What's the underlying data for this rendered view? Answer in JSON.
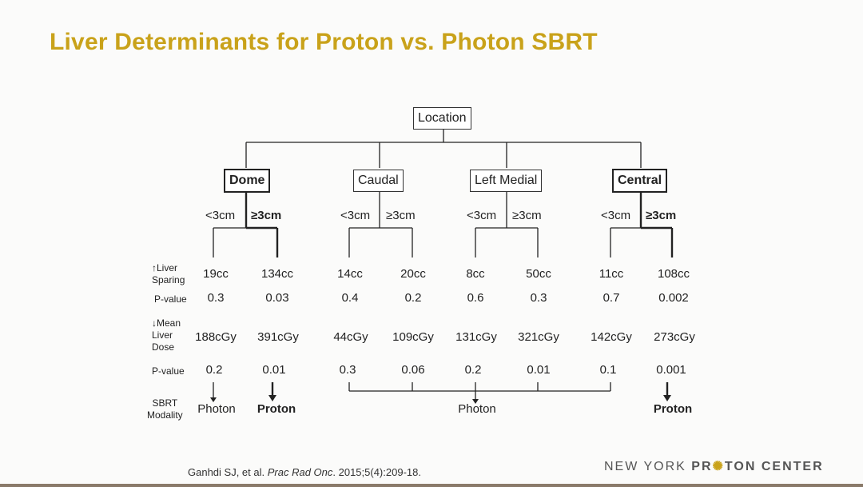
{
  "title": "Liver Determinants for Proton vs. Photon SBRT",
  "tree": {
    "root": "Location",
    "locations": [
      {
        "name": "Dome",
        "bold": true
      },
      {
        "name": "Caudal",
        "bold": false
      },
      {
        "name": "Left Medial",
        "bold": false
      },
      {
        "name": "Central",
        "bold": true
      }
    ],
    "size_labels": [
      "<3cm",
      "≥3cm",
      "<3cm",
      "≥3cm",
      "<3cm",
      "≥3cm",
      "<3cm",
      "≥3cm"
    ]
  },
  "row_headers": {
    "liver_sparing": [
      "↑Liver",
      "Sparing"
    ],
    "pvalue1": "P-value",
    "mean_dose": [
      "↓Mean",
      "Liver",
      "Dose"
    ],
    "pvalue2": "P-value",
    "modality": [
      "SBRT",
      "Modality"
    ]
  },
  "liver_sparing": [
    "19cc",
    "134cc",
    "14cc",
    "20cc",
    "8cc",
    "50cc",
    "11cc",
    "108cc"
  ],
  "pvalue_sparing": [
    "0.3",
    "0.03",
    "0.4",
    "0.2",
    "0.6",
    "0.3",
    "0.7",
    "0.002"
  ],
  "mean_liver_dose": [
    "188cGy",
    "391cGy",
    "44cGy",
    "109cGy",
    "131cGy",
    "321cGy",
    "142cGy",
    "273cGy"
  ],
  "pvalue_dose": [
    "0.2",
    "0.01",
    "0.3",
    "0.06",
    "0.2",
    "0.01",
    "0.1",
    "0.001"
  ],
  "modality": {
    "dome_small": "Photon",
    "dome_large": "Proton",
    "grouped": "Photon",
    "central_large": "Proton"
  },
  "citation": {
    "authors": "Ganhdi SJ, et al. ",
    "journal": "Prac Rad Onc",
    "rest": ". 2015;5(4):209-18."
  },
  "logo": {
    "pre": "NEW YORK ",
    "bold1": "PR",
    "star": "✺",
    "bold2": "TON CENTER"
  }
}
